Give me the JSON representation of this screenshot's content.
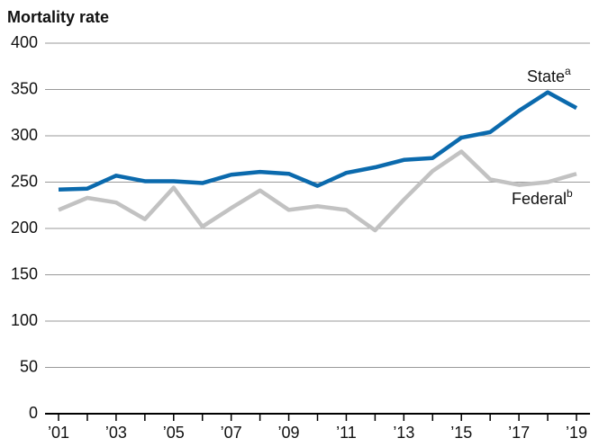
{
  "chart_data": {
    "type": "line",
    "title": "Mortality rate",
    "categories": [
      "’01",
      null,
      "’03",
      null,
      "’05",
      null,
      "’07",
      null,
      "’09",
      null,
      "’11",
      null,
      "’13",
      null,
      "’15",
      null,
      "’17",
      null,
      "’19"
    ],
    "series": [
      {
        "name": "State",
        "footnote_marker": "a",
        "color": "#0b6aad",
        "values": [
          242,
          243,
          257,
          251,
          251,
          249,
          258,
          261,
          259,
          246,
          260,
          266,
          274,
          276,
          298,
          304,
          327,
          347,
          330
        ]
      },
      {
        "name": "Federal",
        "footnote_marker": "b",
        "color": "#c2c2c2",
        "values": [
          220,
          233,
          228,
          210,
          244,
          202,
          222,
          241,
          220,
          224,
          220,
          198,
          231,
          262,
          283,
          253,
          247,
          250,
          259
        ]
      }
    ],
    "ylim": [
      0,
      400
    ],
    "yticks": [
      0,
      50,
      100,
      150,
      200,
      250,
      300,
      350,
      400
    ],
    "grid": true
  }
}
